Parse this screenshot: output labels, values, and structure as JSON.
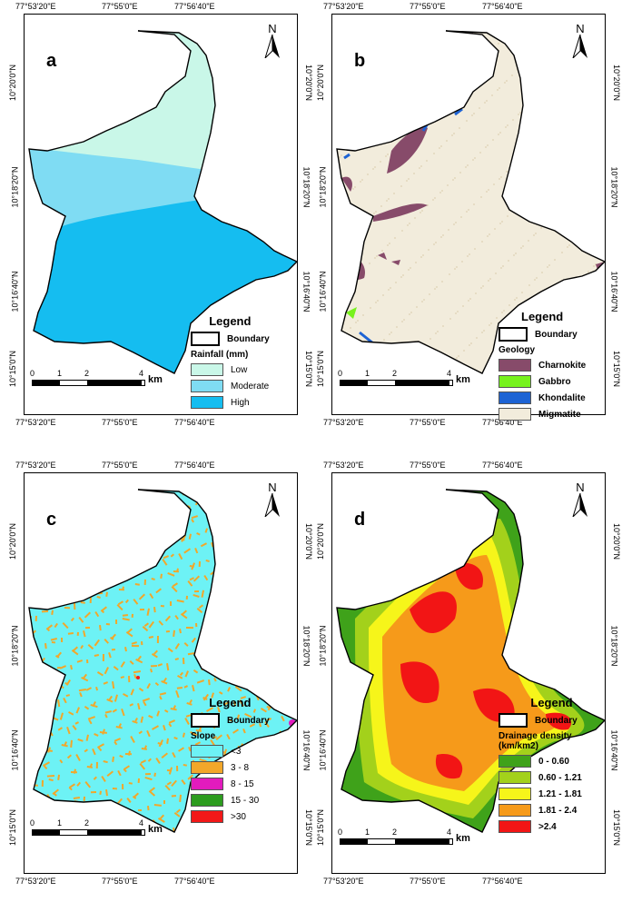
{
  "coords": {
    "top": [
      "77°53'20\"E",
      "77°55'0\"E",
      "77°56'40\"E"
    ],
    "left": [
      "10°20'0\"N",
      "10°18'20\"N",
      "10°16'40\"N",
      "10°15'0\"N"
    ]
  },
  "scale": {
    "ticks": [
      "0",
      "1",
      "2",
      "4"
    ],
    "unit": "km"
  },
  "north": "N",
  "legend_title": "Legend",
  "boundary_label": "Boundary",
  "panels": {
    "a": {
      "letter": "a",
      "subtitle": "Rainfall (mm)",
      "classes": [
        {
          "label": "Low",
          "color": "#c9f7e8"
        },
        {
          "label": "Moderate",
          "color": "#7fdcf3"
        },
        {
          "label": "High",
          "color": "#15bdf0"
        }
      ]
    },
    "b": {
      "letter": "b",
      "subtitle": "Geology",
      "classes": [
        {
          "label": "Charnokite",
          "color": "#874b6a"
        },
        {
          "label": "Gabbro",
          "color": "#77f21d"
        },
        {
          "label": "Khondalite",
          "color": "#1d63d4"
        },
        {
          "label": "Migmatite",
          "color": "#f2ecdc"
        }
      ]
    },
    "c": {
      "letter": "c",
      "subtitle": "Slope",
      "classes": [
        {
          "label": "<3",
          "color": "#6df2f5"
        },
        {
          "label": "3 - 8",
          "color": "#f2a72a"
        },
        {
          "label": "8 - 15",
          "color": "#e21bbd"
        },
        {
          "label": "15 - 30",
          "color": "#2d9c1f"
        },
        {
          "label": ">30",
          "color": "#f21818"
        }
      ]
    },
    "d": {
      "letter": "d",
      "subtitle": "Drainage density (km/km2)",
      "classes": [
        {
          "label": "0 - 0.60",
          "color": "#3fa21a"
        },
        {
          "label": "0.60 - 1.21",
          "color": "#a3d11b"
        },
        {
          "label": "1.21 - 1.81",
          "color": "#f6f51a"
        },
        {
          "label": "1.81 - 2.4",
          "color": "#f69a1a"
        },
        {
          "label": ">2.4",
          "color": "#f21515"
        }
      ]
    }
  }
}
